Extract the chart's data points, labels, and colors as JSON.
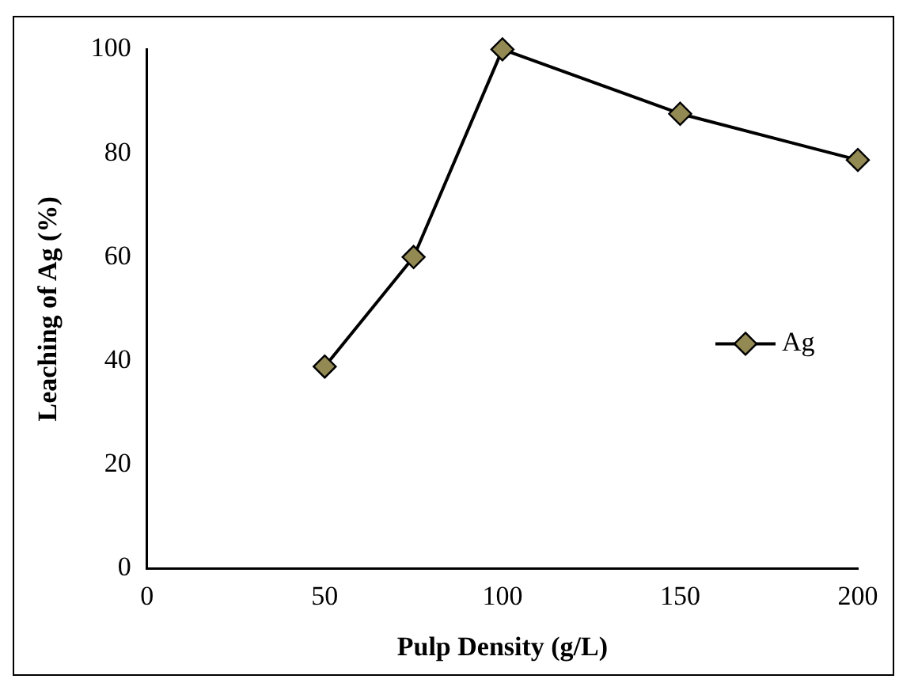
{
  "chart_data": {
    "type": "line",
    "xlabel": "Pulp Density (g/L)",
    "ylabel": "Leaching of Ag (%)",
    "x": [
      50,
      75,
      100,
      150,
      200
    ],
    "series": [
      {
        "name": "Ag",
        "color": "#938953",
        "values": [
          38.9,
          60,
          100,
          87.6,
          78.7
        ]
      }
    ],
    "xlim": [
      0,
      200
    ],
    "xticks": [
      0,
      50,
      100,
      150,
      200
    ],
    "ylim": [
      0,
      100
    ],
    "yticks": [
      0,
      20,
      40,
      60,
      80,
      100
    ],
    "grid": false,
    "legend": "right",
    "marker": "diamond",
    "line_style": "solid"
  }
}
